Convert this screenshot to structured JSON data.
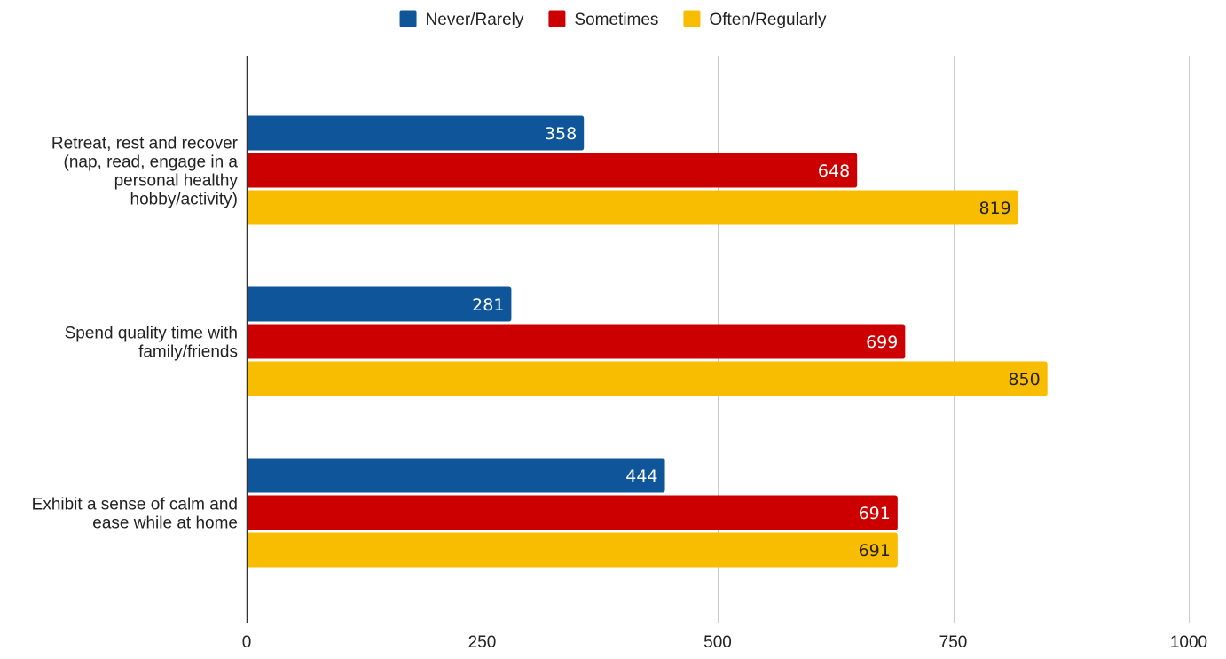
{
  "chart_data": {
    "type": "bar",
    "orientation": "horizontal",
    "categories": [
      [
        "Retreat, rest and recover",
        "(nap, read, engage in a",
        "personal healthy",
        "hobby/activity)"
      ],
      [
        "Spend quality time with",
        "family/friends"
      ],
      [
        "Exhibit a sense of calm and",
        "ease while at home"
      ]
    ],
    "series": [
      {
        "name": "Never/Rarely",
        "color": "#0f5599",
        "label_color": "#ffffff",
        "values": [
          358,
          281,
          444
        ]
      },
      {
        "name": "Sometimes",
        "color": "#cc0000",
        "label_color": "#ffffff",
        "values": [
          648,
          699,
          691
        ]
      },
      {
        "name": "Often/Regularly",
        "color": "#f8bd00",
        "label_color": "#222222",
        "values": [
          819,
          850,
          691
        ]
      }
    ],
    "xlim": [
      0,
      1000
    ],
    "xticks": [
      0,
      250,
      500,
      750,
      1000
    ],
    "xtick_labels": [
      "0",
      "250",
      "500",
      "750",
      "1000"
    ],
    "grid": true,
    "legend_position": "top",
    "data_labels": true
  }
}
